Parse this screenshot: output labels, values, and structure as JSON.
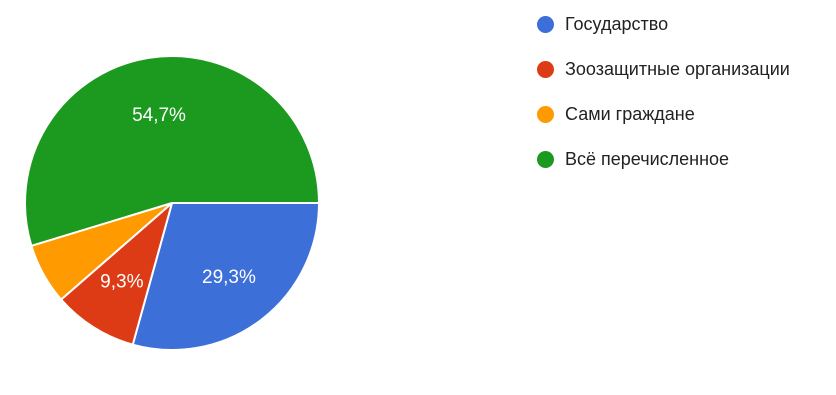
{
  "chart_data": {
    "type": "pie",
    "title": "",
    "legend_position": "right",
    "start_angle_deg": 90,
    "direction": "clockwise",
    "slices": [
      {
        "name": "Государство",
        "value": 29.3,
        "label": "29,3%",
        "color": "#3c6fd8"
      },
      {
        "name": "Зоозащитные организации",
        "value": 9.3,
        "label": "9,3%",
        "color": "#dd3b16"
      },
      {
        "name": "Сами граждане",
        "value": 6.7,
        "label": "",
        "color": "#ff9a00"
      },
      {
        "name": "Всё перечисленное",
        "value": 54.7,
        "label": "54,7%",
        "color": "#1c9a1f"
      }
    ]
  }
}
